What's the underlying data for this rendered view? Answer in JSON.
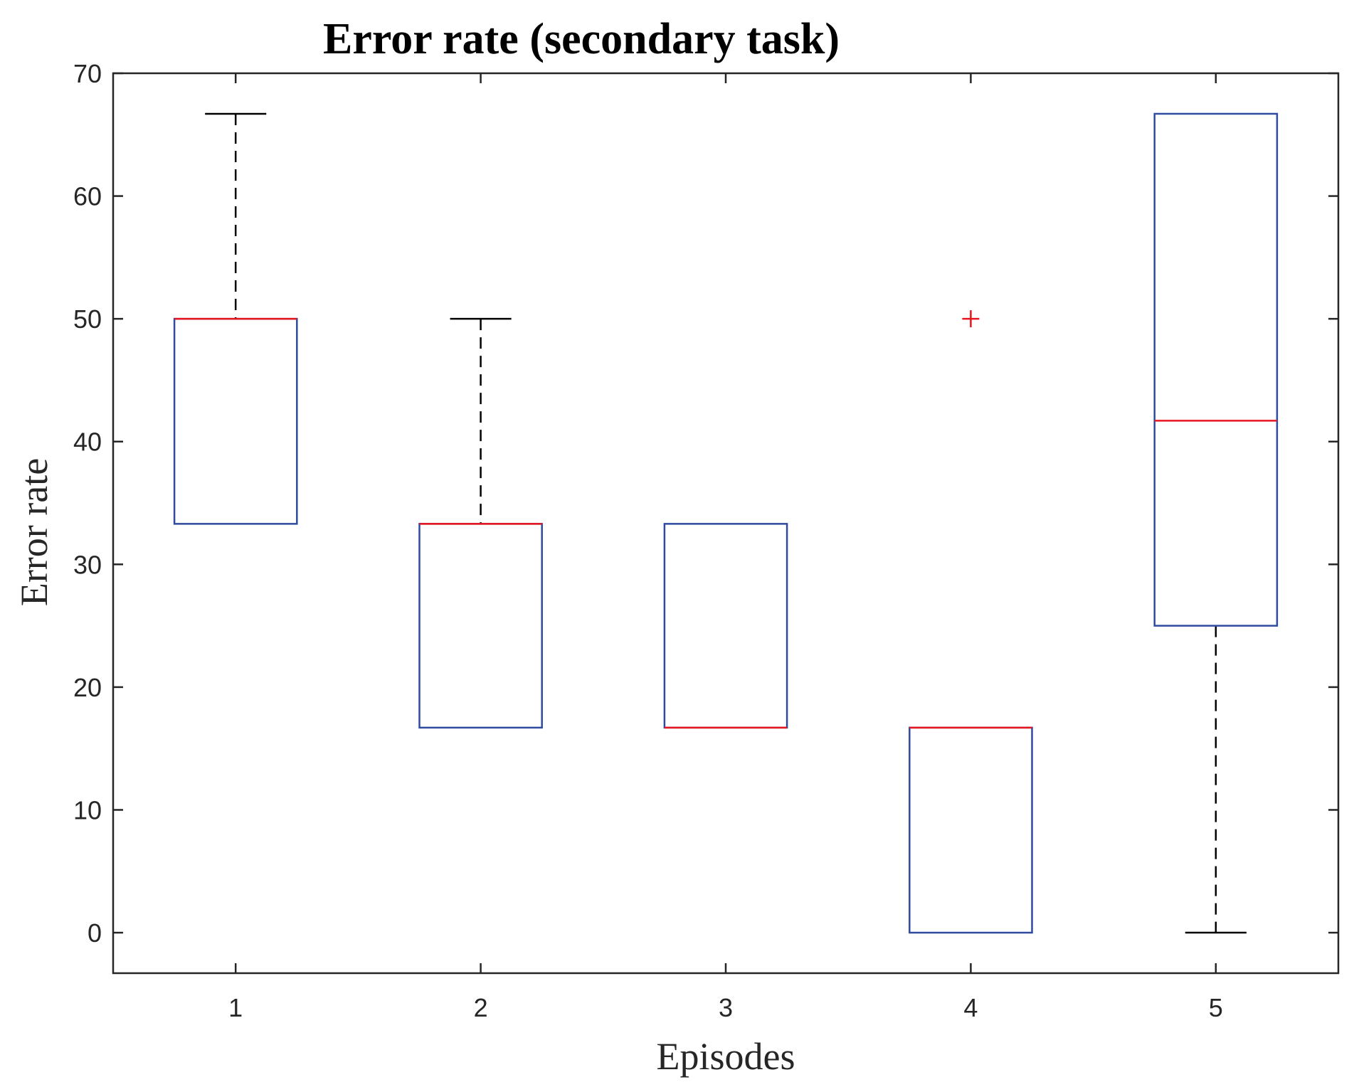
{
  "chart_data": {
    "type": "box",
    "title": "Error rate (secondary task)",
    "xlabel": "Episodes",
    "ylabel": "Error rate",
    "categories": [
      "1",
      "2",
      "3",
      "4",
      "5"
    ],
    "ylim": [
      -3.3,
      70
    ],
    "yticks": [
      0,
      10,
      20,
      30,
      40,
      50,
      60,
      70
    ],
    "grid": false,
    "boxes": [
      {
        "category": "1",
        "whisker_low": 33.3,
        "q1": 33.3,
        "median": 50,
        "q3": 50,
        "whisker_high": 66.7,
        "outliers": []
      },
      {
        "category": "2",
        "whisker_low": 16.7,
        "q1": 16.7,
        "median": 33.3,
        "q3": 33.3,
        "whisker_high": 50,
        "outliers": []
      },
      {
        "category": "3",
        "whisker_low": 16.7,
        "q1": 16.7,
        "median": 16.7,
        "q3": 33.3,
        "whisker_high": 33.3,
        "outliers": []
      },
      {
        "category": "4",
        "whisker_low": 0,
        "q1": 0,
        "median": 16.7,
        "q3": 16.7,
        "whisker_high": 16.7,
        "outliers": [
          50
        ]
      },
      {
        "category": "5",
        "whisker_low": 0,
        "q1": 25,
        "median": 41.7,
        "q3": 66.7,
        "whisker_high": 66.7,
        "outliers": []
      }
    ],
    "colors": {
      "box": "#2e4ba0",
      "median": "#e8141e",
      "whisker": "#000000",
      "outlier": "#e8141e",
      "axis": "#262626"
    }
  }
}
